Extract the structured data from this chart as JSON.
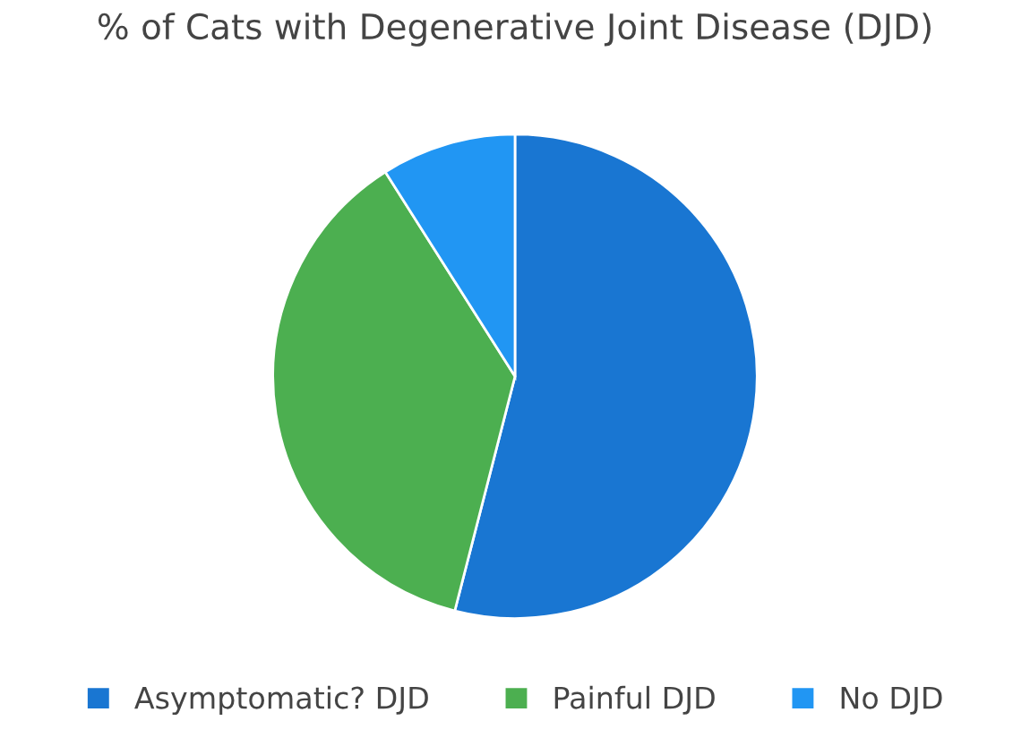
{
  "chart_data": {
    "type": "pie",
    "title": "% of Cats with Degenerative Joint Disease (DJD)",
    "categories": [
      "Asymptomatic? DJD",
      "Painful DJD",
      "No DJD"
    ],
    "values": [
      54,
      37,
      9
    ],
    "colors": [
      "#1976d2",
      "#4caf50",
      "#2196f3"
    ],
    "legend": "bottom"
  }
}
